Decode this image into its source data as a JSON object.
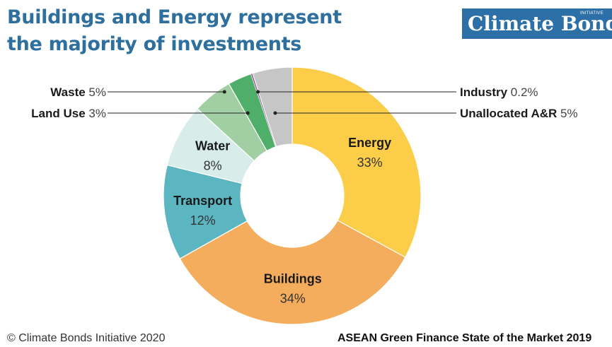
{
  "title_line1": "Buildings and Energy represent",
  "title_line2": "the majority of investments",
  "logo": {
    "text": "Climate Bonds",
    "small": "INITIATIVE"
  },
  "footer": {
    "left": "© Climate Bonds Initiative 2020",
    "right": "ASEAN Green Finance State of the Market 2019"
  },
  "chart_data": {
    "type": "pie",
    "donut": true,
    "slices": [
      {
        "name": "Energy",
        "value": 33,
        "label": "33%",
        "color": "#fccd49",
        "label_mode": "inside"
      },
      {
        "name": "Buildings",
        "value": 34,
        "label": "34%",
        "color": "#f4ad5c",
        "label_mode": "inside"
      },
      {
        "name": "Transport",
        "value": 12,
        "label": "12%",
        "color": "#5cb6c2",
        "label_mode": "inside"
      },
      {
        "name": "Water",
        "value": 8,
        "label": "8%",
        "color": "#d8ecea",
        "label_mode": "inside"
      },
      {
        "name": "Waste",
        "value": 5,
        "label": "5%",
        "color": "#a1cfa3",
        "label_mode": "left"
      },
      {
        "name": "Land Use",
        "value": 3,
        "label": "3%",
        "color": "#4fae6a",
        "label_mode": "left"
      },
      {
        "name": "Industry",
        "value": 0.2,
        "label": "0.2%",
        "color": "#8e3f88",
        "label_mode": "right"
      },
      {
        "name": "Unallocated A&R",
        "value": 5,
        "label": "5%",
        "color": "#c6c6c6",
        "label_mode": "right"
      }
    ]
  }
}
